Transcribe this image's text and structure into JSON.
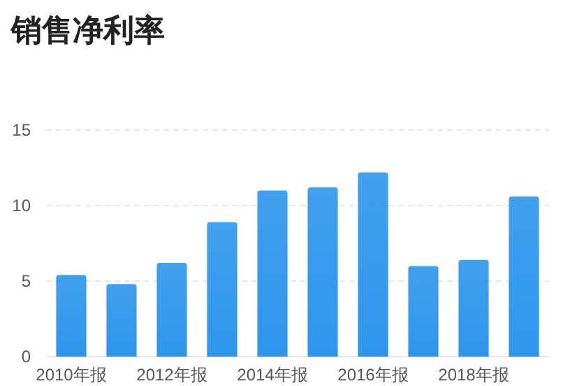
{
  "chart_data": {
    "type": "bar",
    "title": "销售净利率",
    "categories": [
      "2010年报",
      null,
      "2012年报",
      null,
      "2014年报",
      null,
      "2016年报",
      null,
      "2018年报",
      null
    ],
    "values": [
      5.4,
      4.8,
      6.2,
      8.9,
      11.0,
      11.2,
      12.2,
      6.0,
      6.4,
      10.6
    ],
    "color": "#2d96ec",
    "ylim": [
      0,
      15
    ],
    "yticks": [
      0,
      5,
      10,
      15
    ],
    "grid": "y"
  }
}
